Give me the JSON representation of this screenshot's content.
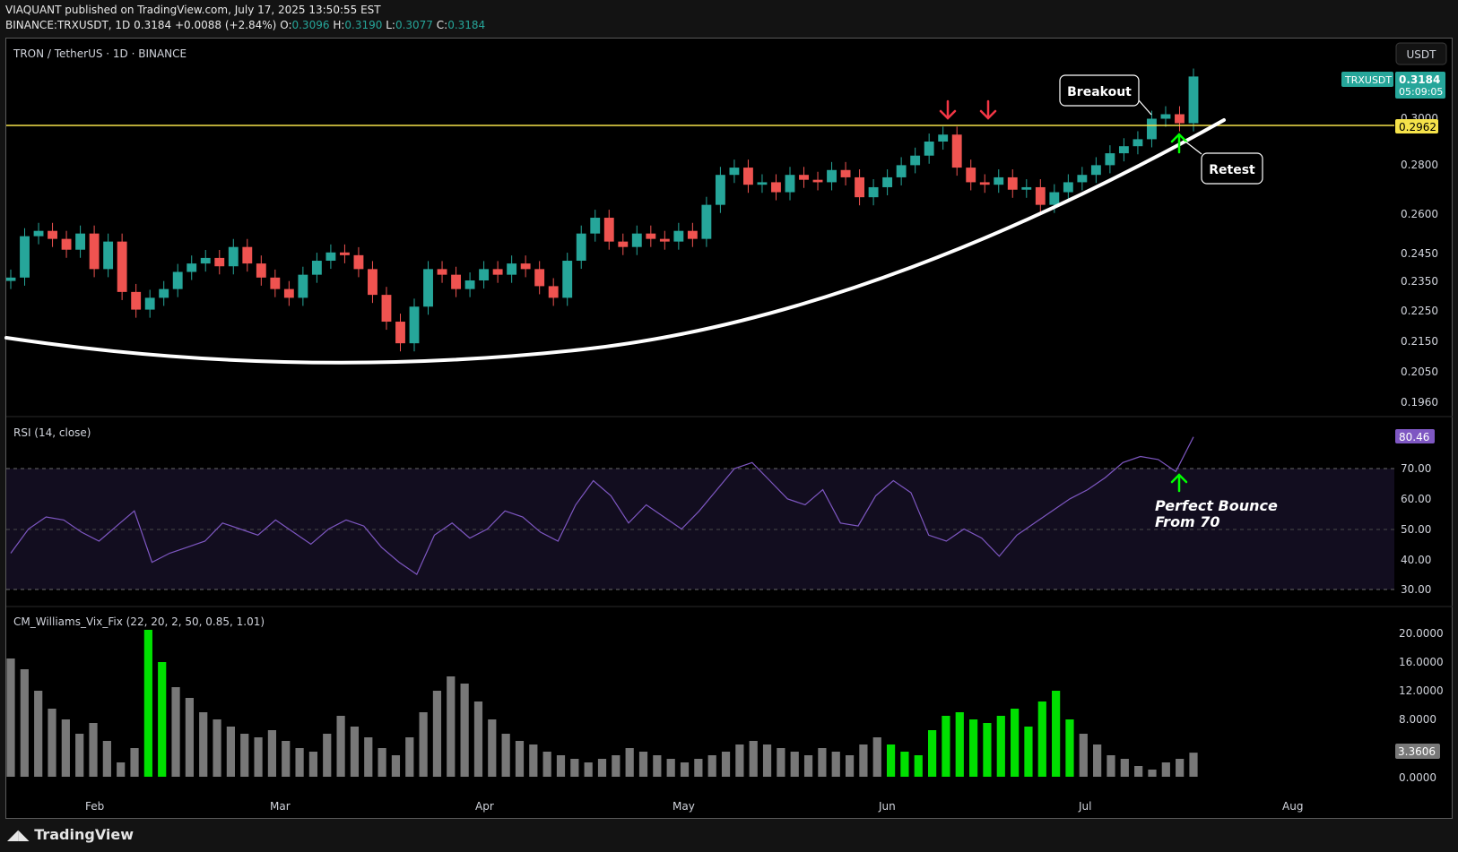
{
  "header": {
    "line1": "VIAQUANT published on TradingView.com, July 17, 2025 13:50:55 EST",
    "symbol": "BINANCE:TRXUSDT, 1D",
    "last": "0.3184",
    "change": "+0.0088 (+2.84%)",
    "o_label": "O:",
    "o": "0.3096",
    "h_label": "H:",
    "h": "0.3190",
    "l_label": "L:",
    "l": "0.3077",
    "c_label": "C:",
    "c": "0.3184"
  },
  "main_pane": {
    "title": "TRON / TetherUS · 1D · BINANCE",
    "currency_button": "USDT",
    "price_tag_symbol": "TRXUSDT",
    "price_tag_value": "0.3184",
    "price_tag_countdown": "05:09:05",
    "level_tag": "0.2962",
    "annotations": {
      "breakout": "Breakout",
      "retest": "Retest"
    }
  },
  "rsi_pane": {
    "title": "RSI (14, close)",
    "value_tag": "80.46",
    "annotation_line1": "Perfect Bounce",
    "annotation_line2": "From 70"
  },
  "vix_pane": {
    "title": "CM_Williams_Vix_Fix (22, 20, 2, 50, 0.85, 1.01)",
    "value_tag": "3.3606"
  },
  "footer": {
    "brand": "TradingView"
  },
  "colors": {
    "up": "#26a69a",
    "down": "#ef5350",
    "level": "#f5e24a",
    "curve": "#ffffff",
    "rsi": "#7e57c2",
    "vix_normal": "#787878",
    "vix_alert": "#00e000",
    "arrow_red": "#f23645",
    "arrow_green": "#00ff00"
  },
  "chart_data": [
    {
      "type": "candlestick",
      "title": "TRON / TetherUS · 1D · BINANCE",
      "y_axis_ticks": [
        "0.3000",
        "0.2800",
        "0.2600",
        "0.2450",
        "0.2350",
        "0.2250",
        "0.2150",
        "0.2050",
        "0.1960"
      ],
      "x_axis_ticks": [
        "Feb",
        "Mar",
        "Apr",
        "May",
        "Jun",
        "Jul",
        "Aug"
      ],
      "scale": "log",
      "horizontal_level": 0.2962,
      "last_price": 0.3184,
      "closes_approx": [
        0.236,
        0.251,
        0.253,
        0.25,
        0.246,
        0.252,
        0.239,
        0.249,
        0.231,
        0.225,
        0.229,
        0.232,
        0.238,
        0.241,
        0.243,
        0.24,
        0.247,
        0.241,
        0.236,
        0.232,
        0.229,
        0.237,
        0.242,
        0.245,
        0.244,
        0.239,
        0.23,
        0.221,
        0.214,
        0.226,
        0.239,
        0.237,
        0.232,
        0.235,
        0.239,
        0.237,
        0.241,
        0.239,
        0.233,
        0.229,
        0.242,
        0.252,
        0.258,
        0.249,
        0.247,
        0.252,
        0.25,
        0.249,
        0.253,
        0.25,
        0.263,
        0.275,
        0.278,
        0.271,
        0.272,
        0.268,
        0.275,
        0.273,
        0.272,
        0.277,
        0.274,
        0.266,
        0.27,
        0.274,
        0.279,
        0.283,
        0.289,
        0.292,
        0.278,
        0.272,
        0.271,
        0.274,
        0.269,
        0.27,
        0.263,
        0.268,
        0.272,
        0.275,
        0.279,
        0.284,
        0.287,
        0.29,
        0.299,
        0.301,
        0.297,
        0.3184
      ]
    },
    {
      "type": "line",
      "title": "RSI (14, close)",
      "y_axis_ticks": [
        "70.00",
        "60.00",
        "50.00",
        "40.00",
        "30.00"
      ],
      "bands": {
        "upper": 70,
        "middle": 50,
        "lower": 30
      },
      "values_approx": [
        42,
        50,
        54,
        53,
        49,
        46,
        51,
        56,
        39,
        42,
        44,
        46,
        52,
        50,
        48,
        53,
        49,
        45,
        50,
        53,
        51,
        44,
        39,
        35,
        48,
        52,
        47,
        50,
        56,
        54,
        49,
        46,
        58,
        66,
        61,
        52,
        58,
        54,
        50,
        56,
        63,
        70,
        72,
        66,
        60,
        58,
        63,
        52,
        51,
        61,
        66,
        62,
        48,
        46,
        50,
        47,
        41,
        48,
        52,
        56,
        60,
        63,
        67,
        72,
        74,
        73,
        69,
        80.46
      ],
      "last_value": 80.46
    },
    {
      "type": "bar",
      "title": "CM_Williams_Vix_Fix (22, 20, 2, 50, 0.85, 1.01)",
      "y_axis_ticks": [
        "20.0000",
        "16.0000",
        "12.0000",
        "8.0000",
        "0.0000"
      ],
      "last_value": 3.3606,
      "values_approx": [
        16.5,
        15.0,
        12.0,
        9.5,
        8.0,
        6.0,
        7.5,
        5.0,
        2.0,
        4.0,
        20.5,
        16.0,
        12.5,
        11.0,
        9.0,
        8.0,
        7.0,
        6.0,
        5.5,
        6.5,
        5.0,
        4.0,
        3.5,
        6.0,
        8.5,
        7.0,
        5.5,
        4.0,
        3.0,
        5.5,
        9.0,
        12.0,
        14.0,
        13.0,
        10.5,
        8.0,
        6.0,
        5.0,
        4.5,
        3.5,
        3.0,
        2.5,
        2.0,
        2.5,
        3.0,
        4.0,
        3.5,
        3.0,
        2.5,
        2.0,
        2.5,
        3.0,
        3.5,
        4.5,
        5.0,
        4.5,
        4.0,
        3.5,
        3.0,
        4.0,
        3.5,
        3.0,
        4.5,
        5.5,
        4.5,
        3.5,
        3.0,
        6.5,
        8.5,
        9.0,
        8.0,
        7.5,
        8.5,
        9.5,
        7.0,
        10.5,
        12.0,
        8.0,
        6.0,
        4.5,
        3.0,
        2.5,
        1.5,
        1.0,
        2.0,
        2.5,
        3.3606
      ],
      "alert_indices": [
        10,
        11,
        64,
        65,
        66,
        67,
        68,
        69,
        70,
        71,
        72,
        73,
        74,
        75,
        76,
        77
      ]
    }
  ]
}
